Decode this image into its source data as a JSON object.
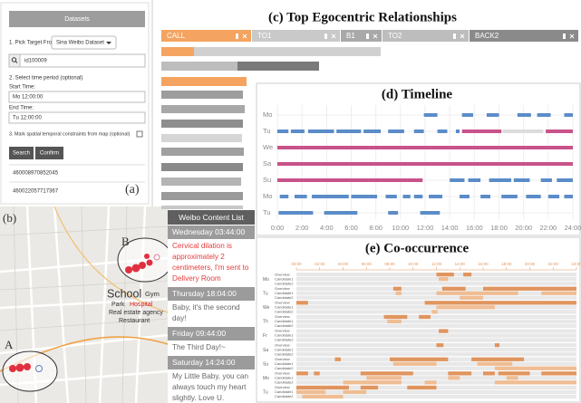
{
  "panel_a": {
    "header": "Datasets",
    "pick_label": "1. Pick Target From",
    "dataset": "Sina Weibo Dataset",
    "search_value": "id100009",
    "time_label": "2. Select time period (optional)",
    "start_label": "Start Time:",
    "start_value": "Mo 12:00:00",
    "end_label": "End Time:",
    "end_value": "Tu 12:00:00",
    "constraint_label": "3. Mark spatial temporal constraints from map (optional)",
    "buttons": [
      "Search",
      "Confirm"
    ],
    "results": [
      "460008970852045",
      "460022057717367"
    ],
    "panel_label": "(a)"
  },
  "panel_b": {
    "panel_label": "(b)",
    "markers": [
      "A",
      "B"
    ],
    "places": [
      "School",
      "Gym",
      "Park",
      "Hospital",
      "Real estate agency",
      "Restaurant"
    ]
  },
  "weibo_list": {
    "title": "Weibo Content List",
    "posts": [
      {
        "time": "Wednesday 03:44:00",
        "text": "Cervical dilation is approximately 2 centimeters, I'm sent to Delivery Room",
        "color": "#e83a3a"
      },
      {
        "time": "Thursday 18:04:00",
        "text": "Baby, it's the second day!",
        "color": "#666666"
      },
      {
        "time": "Friday 09:44:00",
        "text": "The Third Day!~",
        "color": "#666666"
      },
      {
        "time": "Saturday 14:24:00",
        "text": "My Little Baby, you can always touch my heart slightly. Love U.",
        "color": "#666666"
      }
    ]
  },
  "relationships": {
    "title": "(c) Top Egocentric Relationships",
    "tabs": [
      {
        "name": "CALL",
        "color": "#f4a460"
      },
      {
        "name": "TO1",
        "color": "#c9c9c9"
      },
      {
        "name": "B1",
        "color": "#a9a9a9"
      },
      {
        "name": "TO2",
        "color": "#bdbdbd"
      },
      {
        "name": "BACK2",
        "color": "#8a8a8a"
      }
    ]
  },
  "timeline": {
    "title": "(d) Timeline",
    "xlim": [
      0,
      24
    ],
    "xticks": [
      {
        "value": 0,
        "label": "0:00"
      },
      {
        "value": 2,
        "label": "2:00"
      },
      {
        "value": 4,
        "label": "4:00"
      },
      {
        "value": 6,
        "label": "6:00"
      },
      {
        "value": 8,
        "label": "8:00"
      },
      {
        "value": 10,
        "label": "10:00"
      },
      {
        "value": 12,
        "label": "12:00"
      },
      {
        "value": 14,
        "label": "14:00"
      },
      {
        "value": 16,
        "label": "16:00"
      },
      {
        "value": 18,
        "label": "18:00"
      },
      {
        "value": 20,
        "label": "20:00"
      },
      {
        "value": 22,
        "label": "22:00"
      },
      {
        "value": 24,
        "label": "24:00"
      }
    ],
    "grid": true,
    "rows": [
      {
        "label": "Mo",
        "bands": [
          {
            "color": "#5b8cc8",
            "segments": [
              [
                11.9,
                13.0
              ],
              [
                15.0,
                15.9
              ],
              [
                17.0,
                18.0
              ],
              [
                19.5,
                20.6
              ],
              [
                21.1,
                22.2
              ],
              [
                23.3,
                24
              ]
            ]
          }
        ]
      },
      {
        "label": "Tu",
        "bands": [
          {
            "color": "#5b8cc8",
            "segments": [
              [
                0,
                0.9
              ],
              [
                1.1,
                2.2
              ],
              [
                2.5,
                4.6
              ],
              [
                4.8,
                6.8
              ],
              [
                7.0,
                8.4
              ],
              [
                9.0,
                10.3
              ],
              [
                11.1,
                11.9
              ],
              [
                13.0,
                13.8
              ],
              [
                14.5,
                14.8
              ]
            ]
          },
          {
            "color": "#c8528a",
            "segments": [
              [
                15.0,
                18.2
              ],
              [
                21.8,
                24
              ]
            ]
          },
          {
            "color": "#dcdcdc",
            "segments": [
              [
                18.3,
                21.6
              ]
            ]
          }
        ]
      },
      {
        "label": "We",
        "bands": [
          {
            "color": "#c8528a",
            "segments": [
              [
                0,
                24
              ]
            ]
          }
        ]
      },
      {
        "label": "Sa",
        "bands": [
          {
            "color": "#c8528a",
            "segments": [
              [
                0,
                24
              ]
            ]
          }
        ]
      },
      {
        "label": "Su",
        "bands": [
          {
            "color": "#c8528a",
            "segments": [
              [
                0,
                11.8
              ]
            ]
          },
          {
            "color": "#5b8cc8",
            "segments": [
              [
                14.0,
                15.2
              ],
              [
                15.5,
                16.5
              ],
              [
                17.2,
                19.0
              ],
              [
                19.2,
                20.5
              ],
              [
                21.4,
                22.3
              ],
              [
                22.7,
                24
              ]
            ]
          }
        ]
      },
      {
        "label": "Mo",
        "bands": [
          {
            "color": "#5b8cc8",
            "segments": [
              [
                0.2,
                0.9
              ],
              [
                1.4,
                2.4
              ],
              [
                2.8,
                5.8
              ],
              [
                6.0,
                8.1
              ],
              [
                8.8,
                9.7
              ],
              [
                10.2,
                10.8
              ],
              [
                11.1,
                11.8
              ],
              [
                12.3,
                13.4
              ],
              [
                14.8,
                15.6
              ],
              [
                16.5,
                17.3
              ],
              [
                18.2,
                19.5
              ],
              [
                20.2,
                21.4
              ],
              [
                22.0,
                22.9
              ],
              [
                23.3,
                24
              ]
            ]
          }
        ]
      },
      {
        "label": "Tu",
        "bands": [
          {
            "color": "#5b8cc8",
            "segments": [
              [
                0.1,
                2.9
              ],
              [
                3.8,
                6.5
              ],
              [
                9.0,
                9.8
              ],
              [
                11.6,
                13.2
              ]
            ]
          }
        ]
      }
    ]
  },
  "co_occurrence": {
    "title": "(e) Co-occurrence",
    "xlim": [
      0,
      24
    ],
    "xticks": [
      {
        "value": 0,
        "label": "00:00"
      },
      {
        "value": 2,
        "label": "02:00"
      },
      {
        "value": 4,
        "label": "04:00"
      },
      {
        "value": 6,
        "label": "06:00"
      },
      {
        "value": 8,
        "label": "08:00"
      },
      {
        "value": 10,
        "label": "10:00"
      },
      {
        "value": 12,
        "label": "12:00"
      },
      {
        "value": 14,
        "label": "14:00"
      },
      {
        "value": 16,
        "label": "16:00"
      },
      {
        "value": 18,
        "label": "18:00"
      },
      {
        "value": 20,
        "label": "20:00"
      },
      {
        "value": 22,
        "label": "22:00"
      },
      {
        "value": 24,
        "label": "24:00"
      }
    ],
    "colors": [
      "#e0955f",
      "#efbd94",
      "#efbd94"
    ],
    "days": [
      {
        "label": "Mo",
        "rows": [
          {
            "label": "Overview",
            "segments": [
              [
                12,
                13.5
              ],
              [
                14.3,
                15
              ]
            ]
          },
          {
            "label": "Candidate1",
            "segments": [
              [
                12.2,
                13
              ]
            ]
          },
          {
            "label": "Candidate2",
            "segments": []
          }
        ]
      },
      {
        "label": "Tu",
        "rows": [
          {
            "label": "Overview",
            "segments": [
              [
                8.3,
                9
              ],
              [
                12.5,
                14.5
              ],
              [
                16,
                24
              ]
            ]
          },
          {
            "label": "Candidate1",
            "segments": [
              [
                8.5,
                9
              ],
              [
                12,
                19
              ],
              [
                21,
                24
              ]
            ]
          },
          {
            "label": "Candidate2",
            "segments": [
              [
                14,
                16
              ]
            ]
          }
        ]
      },
      {
        "label": "We",
        "rows": [
          {
            "label": "Overview",
            "segments": [
              [
                0,
                1
              ],
              [
                11,
                24
              ]
            ]
          },
          {
            "label": "Candidate1",
            "segments": [
              [
                12,
                17
              ]
            ]
          },
          {
            "label": "Candidate2",
            "segments": [
              [
                11.6,
                12.1
              ]
            ]
          }
        ]
      },
      {
        "label": "Th",
        "rows": [
          {
            "label": "Overview",
            "segments": [
              [
                7.5,
                9.5
              ],
              [
                10.5,
                11.5
              ]
            ]
          },
          {
            "label": "Candidate1",
            "segments": [
              [
                7.8,
                9
              ]
            ]
          },
          {
            "label": "Candidate2",
            "segments": []
          }
        ]
      },
      {
        "label": "Fr",
        "rows": [
          {
            "label": "Overview",
            "segments": [
              [
                12.2,
                13
              ]
            ]
          },
          {
            "label": "Candidate1",
            "segments": []
          },
          {
            "label": "Candidate2",
            "segments": []
          }
        ]
      },
      {
        "label": "Sa",
        "rows": [
          {
            "label": "Overview",
            "segments": [
              [
                12,
                12.6
              ],
              [
                17,
                17.4
              ]
            ]
          },
          {
            "label": "Candidate1",
            "segments": []
          },
          {
            "label": "Candidate2",
            "segments": []
          }
        ]
      },
      {
        "label": "Su",
        "rows": [
          {
            "label": "Overview",
            "segments": [
              [
                3.3,
                3.8
              ],
              [
                8,
                13
              ],
              [
                15,
                19.5
              ]
            ]
          },
          {
            "label": "Candidate1",
            "segments": [
              [
                8.3,
                12
              ],
              [
                15.5,
                18.5
              ]
            ]
          },
          {
            "label": "Candidate2",
            "segments": [
              [
                17,
                24
              ]
            ]
          }
        ]
      },
      {
        "label": "Mo",
        "rows": [
          {
            "label": "Overview",
            "segments": [
              [
                0,
                1
              ],
              [
                1.5,
                2
              ],
              [
                5.5,
                10
              ],
              [
                13,
                15
              ],
              [
                16,
                17
              ],
              [
                17.3,
                20
              ],
              [
                21,
                24
              ]
            ]
          },
          {
            "label": "Candidate1",
            "segments": [
              [
                6,
                9
              ],
              [
                13,
                14
              ],
              [
                18,
                19
              ]
            ]
          },
          {
            "label": "Candidate2",
            "segments": [
              [
                4,
                9
              ],
              [
                11,
                12
              ],
              [
                17,
                24
              ]
            ]
          }
        ]
      },
      {
        "label": "Tu",
        "rows": [
          {
            "label": "Overview",
            "segments": [
              [
                0,
                4.5
              ],
              [
                5.5,
                7
              ],
              [
                9.5,
                12
              ]
            ]
          },
          {
            "label": "Candidate1",
            "segments": [
              [
                0,
                2.5
              ],
              [
                4,
                6
              ]
            ]
          },
          {
            "label": "Candidate2",
            "segments": [
              [
                0.5,
                4
              ]
            ]
          }
        ]
      }
    ]
  }
}
